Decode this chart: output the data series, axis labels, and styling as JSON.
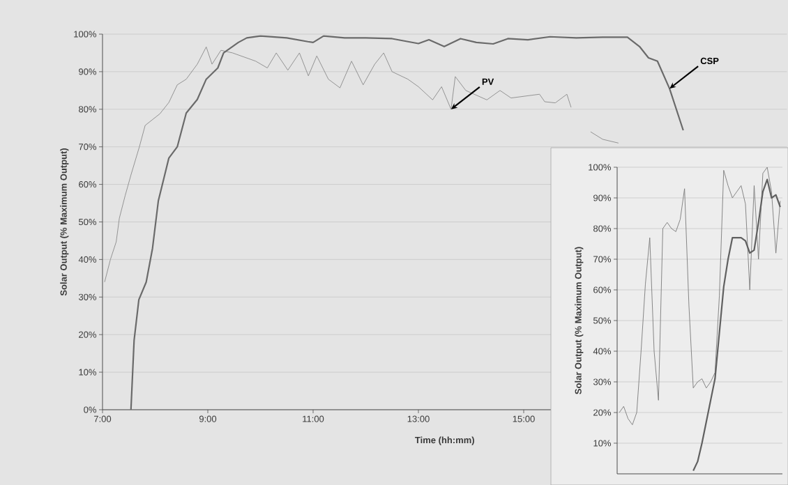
{
  "chart_data": [
    {
      "type": "line",
      "xlabel": "Time (hh:mm)",
      "ylabel": "Solar Output (% Maximum Output)",
      "xlim": [
        7,
        20
      ],
      "xticks": [
        {
          "value": 7,
          "label": "7:00"
        },
        {
          "value": 9,
          "label": "9:00"
        },
        {
          "value": 11,
          "label": "11:00"
        },
        {
          "value": 13,
          "label": "13:00"
        },
        {
          "value": 15,
          "label": "15:00"
        }
      ],
      "ylim": [
        0,
        100
      ],
      "yticks": [
        {
          "value": 0,
          "label": "0%"
        },
        {
          "value": 10,
          "label": "10%"
        },
        {
          "value": 20,
          "label": "20%"
        },
        {
          "value": 30,
          "label": "30%"
        },
        {
          "value": 40,
          "label": "40%"
        },
        {
          "value": 50,
          "label": "50%"
        },
        {
          "value": 60,
          "label": "60%"
        },
        {
          "value": 70,
          "label": "70%"
        },
        {
          "value": 80,
          "label": "80%"
        },
        {
          "value": 90,
          "label": "90%"
        },
        {
          "value": 100,
          "label": "100%"
        }
      ],
      "grid": "y",
      "series": [
        {
          "color": "#8a8a8a",
          "x": [
            7.04,
            7.15,
            7.26,
            7.32,
            7.43,
            7.54,
            7.7,
            7.81,
            8.09,
            8.26,
            8.42,
            8.59,
            8.8,
            8.97,
            9.08,
            9.25,
            9.47,
            9.91,
            10.13,
            10.3,
            10.52,
            10.74,
            10.91,
            11.07,
            11.29,
            11.51,
            11.73,
            11.95,
            12.17,
            12.34,
            12.5,
            12.8,
            13.0,
            13.27,
            13.44,
            13.62,
            13.7,
            13.9,
            14.3,
            14.55,
            14.76,
            15.3,
            15.4,
            15.6,
            15.82,
            15.9,
            16.1,
            16.27,
            16.5,
            16.8
          ],
          "values": [
            34,
            40,
            44.7,
            51,
            57,
            62.5,
            70,
            75.7,
            78.8,
            81.8,
            86.5,
            88,
            92,
            96.6,
            92,
            95.7,
            95,
            92.8,
            91,
            95,
            90.4,
            95,
            88.9,
            94.2,
            88,
            85.7,
            92.8,
            86.5,
            92,
            95,
            90,
            88,
            86,
            82.5,
            86,
            80,
            88.7,
            85,
            82.5,
            85,
            83,
            84,
            82,
            81.7,
            84,
            80.5,
            null,
            74,
            72,
            71
          ]
        },
        {
          "color": "#6a6a6a",
          "x": [
            7.54,
            7.6,
            7.69,
            7.83,
            7.95,
            8.06,
            8.26,
            8.42,
            8.59,
            8.8,
            8.97,
            9.19,
            9.3,
            9.58,
            9.74,
            10.0,
            10.5,
            10.9,
            11.0,
            11.2,
            11.6,
            12.0,
            12.5,
            13.0,
            13.2,
            13.49,
            13.8,
            14.1,
            14.42,
            14.7,
            15.08,
            15.5,
            16.0,
            16.5,
            16.97,
            17.2,
            17.37,
            17.54,
            17.77,
            18.03
          ],
          "values": [
            0,
            18.5,
            29.3,
            34,
            43,
            55.6,
            67,
            70,
            79,
            82.6,
            88,
            91,
            95,
            97.8,
            99,
            99.5,
            99,
            98,
            97.8,
            99.5,
            99,
            99,
            98.8,
            97.5,
            98.5,
            96.7,
            98.8,
            97.8,
            97.4,
            98.8,
            98.5,
            99.3,
            99,
            99.2,
            99.2,
            96.7,
            93.7,
            92.8,
            85.5,
            74.4
          ]
        }
      ],
      "annotations": [
        {
          "text": "CSP",
          "x": 17.77,
          "y": 85.5
        },
        {
          "text": "PV",
          "x": 13.62,
          "y": 80
        }
      ]
    },
    {
      "type": "line",
      "ylabel": "Solar Output (% Maximum Output)",
      "categories": [
        null,
        null,
        null,
        null,
        null,
        null,
        null,
        null,
        null,
        null,
        null,
        null,
        null,
        null,
        null,
        null,
        null,
        null,
        null,
        null,
        null,
        null,
        null,
        null,
        null,
        null,
        null,
        null,
        null,
        null,
        null,
        null,
        null,
        null,
        null,
        null,
        null,
        null
      ],
      "ylim": [
        0,
        100
      ],
      "yticks": [
        {
          "value": 10,
          "label": "10%"
        },
        {
          "value": 20,
          "label": "20%"
        },
        {
          "value": 30,
          "label": "30%"
        },
        {
          "value": 40,
          "label": "40%"
        },
        {
          "value": 50,
          "label": "50%"
        },
        {
          "value": 60,
          "label": "60%"
        },
        {
          "value": 70,
          "label": "70%"
        },
        {
          "value": 80,
          "label": "80%"
        },
        {
          "value": 90,
          "label": "90%"
        },
        {
          "value": 100,
          "label": "100%"
        }
      ],
      "grid": "y",
      "tick_labels": "y",
      "series": [
        {
          "color": "#7a7a7a",
          "values": [
            20,
            22,
            18,
            16,
            20,
            40,
            62,
            77,
            40,
            24,
            80,
            82,
            80,
            79,
            83,
            93,
            55,
            28,
            30,
            31,
            28,
            30,
            33,
            58,
            99,
            94,
            90,
            92,
            94,
            88,
            60,
            94,
            70,
            98,
            100,
            92,
            72,
            89
          ]
        },
        {
          "color": "#606060",
          "values": [
            null,
            null,
            null,
            null,
            null,
            null,
            null,
            null,
            null,
            null,
            null,
            null,
            null,
            null,
            null,
            null,
            null,
            1,
            4,
            10,
            17,
            24,
            31,
            46,
            61,
            70,
            77,
            77,
            77,
            76,
            72,
            73,
            82,
            92,
            96,
            90,
            91,
            87
          ]
        }
      ]
    }
  ]
}
